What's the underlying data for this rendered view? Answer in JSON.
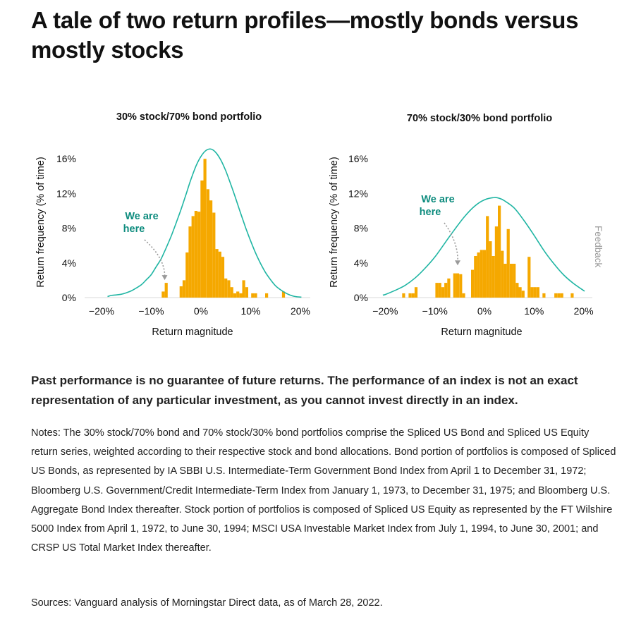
{
  "page": {
    "title": "A tale of two return profiles—mostly bonds versus mostly stocks",
    "disclaimer": "Past performance is no guarantee of future returns. The performance of an index is not an exact representation of any particular investment, as you cannot invest directly in an index.",
    "notes": "Notes: The 30% stock/70% bond and 70% stock/30% bond portfolios comprise the Spliced US Bond and Spliced US Equity return series, weighted according to their respective stock and bond allocations. Bond portion of portfolios is composed of Spliced US Bonds, as represented by IA SBBI U.S. Intermediate-Term Government Bond Index from April 1 to December 31, 1972; Bloomberg U.S. Government/Credit Intermediate-Term Index from January 1, 1973, to December 31, 1975; and Bloomberg U.S. Aggregate Bond Index thereafter. Stock portion of portfolios is composed of Spliced US Equity as represented by the FT Wilshire 5000 Index from April 1, 1972, to June 30, 1994; MSCI USA Investable Market Index from July 1, 1994, to June 30, 2001; and CRSP US Total Market Index thereafter.",
    "sources": "Sources: Vanguard analysis of Morningstar Direct data, as of March 28, 2022.",
    "feedback_label": "Feedback"
  },
  "colors": {
    "bar": "#F5A800",
    "curve": "#1FB5A3",
    "annotation": "#0E8C7E",
    "arrow": "#9A9A9A"
  },
  "chart_data": [
    {
      "type": "bar",
      "title": "30% stock/70% bond portfolio",
      "xlabel": "Return magnitude",
      "ylabel": "Return frequency (% of time)",
      "xlim": [
        -20,
        20
      ],
      "ylim": [
        0,
        16
      ],
      "x_ticks": [
        "−20%",
        "−10%",
        "0%",
        "10%",
        "20%"
      ],
      "y_ticks": [
        "0%",
        "4%",
        "8%",
        "12%",
        "16%"
      ],
      "grid": false,
      "annotation": {
        "text": [
          "We are",
          "here"
        ],
        "x": -7.3,
        "y": 1.7
      },
      "bars": {
        "x": [
          -7.6,
          -7.0,
          -4.0,
          -3.4,
          -2.8,
          -2.2,
          -1.6,
          -1.0,
          -0.4,
          0.2,
          0.8,
          1.4,
          2.0,
          2.6,
          3.2,
          3.8,
          4.4,
          5.0,
          5.6,
          6.2,
          6.8,
          7.4,
          8.0,
          8.6,
          9.2,
          10.4,
          11.0,
          13.2,
          16.6
        ],
        "values": [
          0.7,
          1.7,
          1.3,
          2.0,
          5.2,
          8.2,
          9.4,
          10.0,
          9.9,
          13.5,
          16.0,
          12.5,
          11.2,
          9.8,
          5.6,
          5.3,
          4.7,
          2.2,
          2.0,
          1.2,
          0.5,
          0.7,
          0.5,
          2.0,
          1.2,
          0.5,
          0.5,
          0.5,
          0.7
        ]
      },
      "curve": {
        "x": [
          -18.8,
          -18,
          -17,
          -16,
          -15,
          -14,
          -13,
          -12,
          -11,
          -10,
          -9,
          -8,
          -7,
          -6,
          -5,
          -4,
          -3,
          -2,
          -1,
          0,
          1,
          2,
          3,
          4,
          5,
          6,
          7,
          8,
          9,
          10,
          11,
          12,
          13,
          14,
          15,
          16,
          17,
          18,
          19,
          20.2
        ],
        "y": [
          0.12,
          0.25,
          0.31,
          0.39,
          0.56,
          0.78,
          1.11,
          1.48,
          2.05,
          2.65,
          3.57,
          4.48,
          5.74,
          7.07,
          8.61,
          10.19,
          11.92,
          13.66,
          15.17,
          16.28,
          16.96,
          17.12,
          16.72,
          15.85,
          14.59,
          13.05,
          11.4,
          9.69,
          8.04,
          6.52,
          5.11,
          3.91,
          2.88,
          2.06,
          1.36,
          0.9,
          0.54,
          0.28,
          0.12,
          0.05
        ]
      }
    },
    {
      "type": "bar",
      "title": "70% stock/30% bond portfolio",
      "xlabel": "Return magnitude",
      "ylabel": "Return frequency (% of time)",
      "xlim": [
        -20,
        20
      ],
      "ylim": [
        0,
        16
      ],
      "x_ticks": [
        "−20%",
        "−10%",
        "0%",
        "10%",
        "20%"
      ],
      "y_ticks": [
        "0%",
        "4%",
        "8%",
        "12%",
        "16%"
      ],
      "grid": false,
      "annotation": {
        "text": [
          "We are",
          "here"
        ],
        "x": -5.4,
        "y": 3.4
      },
      "bars": {
        "x": [
          -16.3,
          -15.0,
          -14.4,
          -13.8,
          -9.6,
          -9.0,
          -8.4,
          -7.8,
          -7.2,
          -6.0,
          -5.4,
          -4.8,
          -4.2,
          -2.4,
          -1.8,
          -1.2,
          -0.6,
          0.0,
          0.6,
          1.2,
          1.8,
          2.4,
          3.0,
          3.6,
          4.2,
          4.8,
          5.4,
          6.0,
          6.6,
          7.2,
          7.8,
          9.0,
          9.6,
          10.2,
          10.8,
          12.0,
          14.4,
          15.0,
          15.6,
          17.7
        ],
        "values": [
          0.5,
          0.5,
          0.5,
          1.2,
          1.7,
          1.7,
          1.2,
          1.7,
          2.2,
          2.8,
          2.8,
          2.7,
          0.5,
          3.2,
          4.8,
          5.2,
          5.5,
          5.5,
          9.4,
          6.5,
          4.8,
          8.2,
          10.6,
          5.4,
          3.9,
          7.9,
          3.9,
          3.9,
          1.7,
          1.2,
          0.8,
          4.7,
          1.2,
          1.2,
          1.2,
          0.5,
          0.5,
          0.5,
          0.5,
          0.5
        ]
      },
      "curve": {
        "x": [
          -20.5,
          -20,
          -18,
          -16,
          -14,
          -12,
          -10,
          -8,
          -6,
          -4,
          -2,
          0,
          2,
          3,
          4,
          6,
          8,
          10,
          12,
          14,
          16,
          18,
          20.2
        ],
        "y": [
          0.3,
          0.36,
          0.84,
          1.41,
          2.26,
          3.37,
          4.68,
          6.28,
          7.86,
          9.35,
          10.53,
          11.27,
          11.54,
          11.45,
          11.18,
          10.33,
          8.87,
          7.19,
          5.42,
          3.91,
          2.6,
          1.62,
          0.74
        ]
      }
    }
  ]
}
